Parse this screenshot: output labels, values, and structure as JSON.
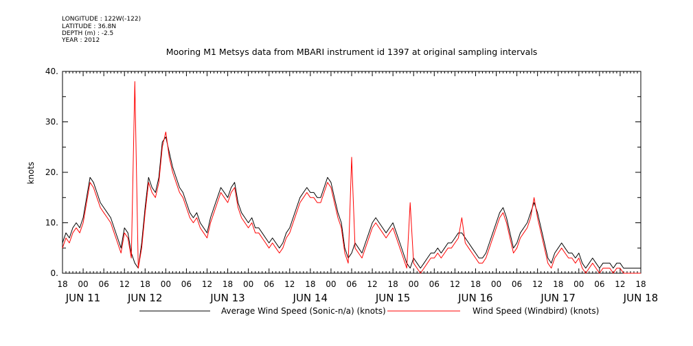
{
  "meta": {
    "longitude": "LONGITUDE : 122W(-122)",
    "latitude": "LATITUDE : 36.8N",
    "depth": "DEPTH (m) : -2.5",
    "year": "YEAR : 2012"
  },
  "colors": {
    "average": "#000000",
    "windbird": "#ff0000"
  },
  "chart_data": {
    "type": "line",
    "title": "Mooring M1 Metsys data from MBARI instrument id 1397 at original sampling intervals",
    "ylabel": "knots",
    "xlabel": "",
    "ylim": [
      0,
      40
    ],
    "yticks": [
      0,
      10,
      20,
      30,
      40
    ],
    "ytick_labels": [
      "0.",
      "10.",
      "20.",
      "30.",
      "40."
    ],
    "xlim": [
      0,
      168
    ],
    "x_units": "hours from JUN 11 18:00 2012",
    "x_hour_ticks": [
      "18",
      "00",
      "06",
      "12",
      "18",
      "00",
      "06",
      "12",
      "18",
      "00",
      "06",
      "12",
      "18",
      "00",
      "06",
      "12",
      "18",
      "00",
      "06",
      "12",
      "18",
      "00",
      "06",
      "12",
      "18",
      "00",
      "06",
      "12",
      "18"
    ],
    "date_labels": [
      {
        "label": "JUN 11",
        "hour": 0
      },
      {
        "label": "JUN 12",
        "hour": 18
      },
      {
        "label": "JUN 13",
        "hour": 42
      },
      {
        "label": "JUN 14",
        "hour": 66
      },
      {
        "label": "JUN 15",
        "hour": 90
      },
      {
        "label": "JUN 16",
        "hour": 114
      },
      {
        "label": "JUN 17",
        "hour": 138
      },
      {
        "label": "JUN 18",
        "hour": 162
      }
    ],
    "grid": false,
    "legend_position": "bottom",
    "series": [
      {
        "name": "Average Wind Speed (Sonic-n/a) (knots)",
        "x": [
          0,
          1,
          2,
          3,
          4,
          5,
          6,
          7,
          8,
          9,
          10,
          11,
          12,
          13,
          14,
          15,
          16,
          17,
          18,
          19,
          20,
          21,
          22,
          23,
          24,
          25,
          26,
          27,
          28,
          29,
          30,
          31,
          32,
          33,
          34,
          35,
          36,
          37,
          38,
          39,
          40,
          41,
          42,
          43,
          44,
          45,
          46,
          47,
          48,
          49,
          50,
          51,
          52,
          53,
          54,
          55,
          56,
          57,
          58,
          59,
          60,
          61,
          62,
          63,
          64,
          65,
          66,
          67,
          68,
          69,
          70,
          71,
          72,
          73,
          74,
          75,
          76,
          77,
          78,
          79,
          80,
          81,
          82,
          83,
          84,
          85,
          86,
          87,
          88,
          89,
          90,
          91,
          92,
          93,
          94,
          95,
          96,
          97,
          98,
          99,
          100,
          101,
          102,
          103,
          104,
          105,
          106,
          107,
          108,
          109,
          110,
          111,
          112,
          113,
          114,
          115,
          116,
          117,
          118,
          119,
          120,
          121,
          122,
          123,
          124,
          125,
          126,
          127,
          128,
          129,
          130,
          131,
          132,
          133,
          134,
          135,
          136,
          137,
          138,
          139,
          140,
          141,
          142,
          143,
          144,
          145,
          146,
          147,
          148,
          149,
          150,
          151,
          152,
          153,
          154,
          155,
          156,
          157,
          158,
          159,
          160,
          161,
          162,
          163,
          164,
          165,
          166,
          167,
          168
        ],
        "y": [
          6,
          8,
          7,
          9,
          10,
          9,
          11,
          15,
          19,
          18,
          16,
          14,
          13,
          12,
          11,
          9,
          7,
          5,
          9,
          8,
          4,
          2,
          1,
          6,
          13,
          19,
          17,
          16,
          19,
          26,
          27,
          24,
          21,
          19,
          17,
          16,
          14,
          12,
          11,
          12,
          10,
          9,
          8,
          11,
          13,
          15,
          17,
          16,
          15,
          17,
          18,
          14,
          12,
          11,
          10,
          11,
          9,
          9,
          8,
          7,
          6,
          7,
          6,
          5,
          6,
          8,
          9,
          11,
          13,
          15,
          16,
          17,
          16,
          16,
          15,
          15,
          17,
          19,
          18,
          15,
          12,
          10,
          5,
          3,
          4,
          6,
          5,
          4,
          6,
          8,
          10,
          11,
          10,
          9,
          8,
          9,
          10,
          8,
          6,
          4,
          2,
          1,
          3,
          2,
          1,
          2,
          3,
          4,
          4,
          5,
          4,
          5,
          6,
          6,
          7,
          8,
          8,
          7,
          6,
          5,
          4,
          3,
          3,
          4,
          6,
          8,
          10,
          12,
          13,
          11,
          8,
          5,
          6,
          8,
          9,
          10,
          12,
          14,
          12,
          9,
          6,
          3,
          2,
          4,
          5,
          6,
          5,
          4,
          4,
          3,
          4,
          2,
          1,
          2,
          3,
          2,
          1,
          2,
          2,
          2,
          1,
          2,
          2,
          1,
          1,
          1,
          1,
          1,
          1
        ]
      },
      {
        "name": "Wind Speed (Windbird) (knots)",
        "x": [
          0,
          1,
          2,
          3,
          4,
          5,
          6,
          7,
          8,
          9,
          10,
          11,
          12,
          13,
          14,
          15,
          16,
          17,
          18,
          19,
          20,
          21,
          22,
          23,
          24,
          25,
          26,
          27,
          28,
          29,
          30,
          31,
          32,
          33,
          34,
          35,
          36,
          37,
          38,
          39,
          40,
          41,
          42,
          43,
          44,
          45,
          46,
          47,
          48,
          49,
          50,
          51,
          52,
          53,
          54,
          55,
          56,
          57,
          58,
          59,
          60,
          61,
          62,
          63,
          64,
          65,
          66,
          67,
          68,
          69,
          70,
          71,
          72,
          73,
          74,
          75,
          76,
          77,
          78,
          79,
          80,
          81,
          82,
          83,
          84,
          85,
          86,
          87,
          88,
          89,
          90,
          91,
          92,
          93,
          94,
          95,
          96,
          97,
          98,
          99,
          100,
          101,
          102,
          103,
          104,
          105,
          106,
          107,
          108,
          109,
          110,
          111,
          112,
          113,
          114,
          115,
          116,
          117,
          118,
          119,
          120,
          121,
          122,
          123,
          124,
          125,
          126,
          127,
          128,
          129,
          130,
          131,
          132,
          133,
          134,
          135,
          136,
          137,
          138,
          139,
          140,
          141,
          142,
          143,
          144,
          145,
          146,
          147,
          148,
          149,
          150,
          151,
          152,
          153,
          154,
          155,
          156,
          157,
          158,
          159,
          160,
          161,
          162,
          163,
          164,
          165,
          166,
          167,
          168
        ],
        "y": [
          5,
          7,
          6,
          8,
          9,
          8,
          10,
          14,
          18,
          17,
          15,
          13,
          12,
          11,
          10,
          8,
          6,
          4,
          8,
          7,
          3,
          38,
          1,
          5,
          12,
          18,
          16,
          15,
          18,
          25,
          28,
          23,
          20,
          18,
          16,
          15,
          13,
          11,
          10,
          11,
          9,
          8,
          7,
          10,
          12,
          14,
          16,
          15,
          14,
          16,
          17,
          13,
          11,
          10,
          9,
          10,
          8,
          8,
          7,
          6,
          5,
          6,
          5,
          4,
          5,
          7,
          8,
          10,
          12,
          14,
          15,
          16,
          15,
          15,
          14,
          14,
          16,
          18,
          17,
          14,
          11,
          9,
          4,
          2,
          23,
          5,
          4,
          3,
          5,
          7,
          9,
          10,
          9,
          8,
          7,
          8,
          9,
          7,
          5,
          3,
          1,
          14,
          2,
          1,
          0,
          1,
          2,
          3,
          3,
          4,
          3,
          4,
          5,
          5,
          6,
          7,
          11,
          6,
          5,
          4,
          3,
          2,
          2,
          3,
          5,
          7,
          9,
          11,
          12,
          10,
          7,
          4,
          5,
          7,
          8,
          9,
          11,
          15,
          11,
          8,
          5,
          2,
          1,
          3,
          4,
          5,
          4,
          3,
          3,
          2,
          3,
          1,
          0,
          1,
          2,
          1,
          0,
          1,
          1,
          1,
          0,
          1,
          1,
          0,
          0,
          0,
          0,
          0,
          0
        ]
      }
    ]
  }
}
